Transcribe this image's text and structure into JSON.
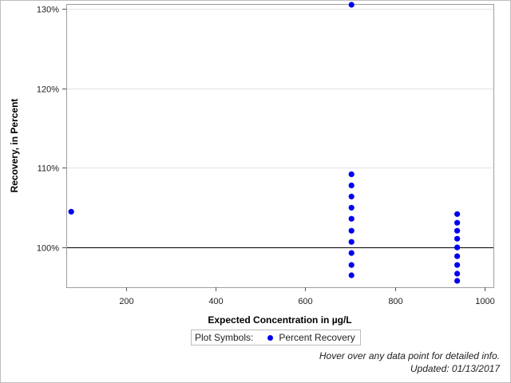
{
  "chart_data": {
    "type": "scatter",
    "xlabel": "Expected Concentration in µg/L",
    "ylabel": "Recovery, in Percent",
    "xlim": [
      66,
      1020
    ],
    "ylim": [
      95,
      130.6
    ],
    "xticks": [
      200,
      400,
      600,
      800,
      1000
    ],
    "yticks": [
      100,
      110,
      120,
      130
    ],
    "ytick_format": "percent",
    "reference_line": 100,
    "grid": true,
    "legend_placement": "bottom-center",
    "legend_title": "Plot Symbols:",
    "series": [
      {
        "name": "Percent Recovery",
        "color": "#0000ee",
        "points": [
          [
            77,
            104.5
          ],
          [
            703,
            130.5
          ],
          [
            703,
            109.2
          ],
          [
            703,
            107.8
          ],
          [
            703,
            106.4
          ],
          [
            703,
            105.0
          ],
          [
            703,
            103.6
          ],
          [
            703,
            102.1
          ],
          [
            703,
            100.7
          ],
          [
            703,
            99.3
          ],
          [
            703,
            97.8
          ],
          [
            703,
            96.5
          ],
          [
            939,
            104.2
          ],
          [
            939,
            103.1
          ],
          [
            939,
            102.1
          ],
          [
            939,
            101.1
          ],
          [
            939,
            100.0
          ],
          [
            939,
            98.9
          ],
          [
            939,
            97.8
          ],
          [
            939,
            96.7
          ],
          [
            939,
            95.8
          ]
        ]
      }
    ]
  },
  "footer": {
    "hover_hint": "Hover over any data point for detailed info.",
    "updated": "Updated: 01/13/2017"
  }
}
